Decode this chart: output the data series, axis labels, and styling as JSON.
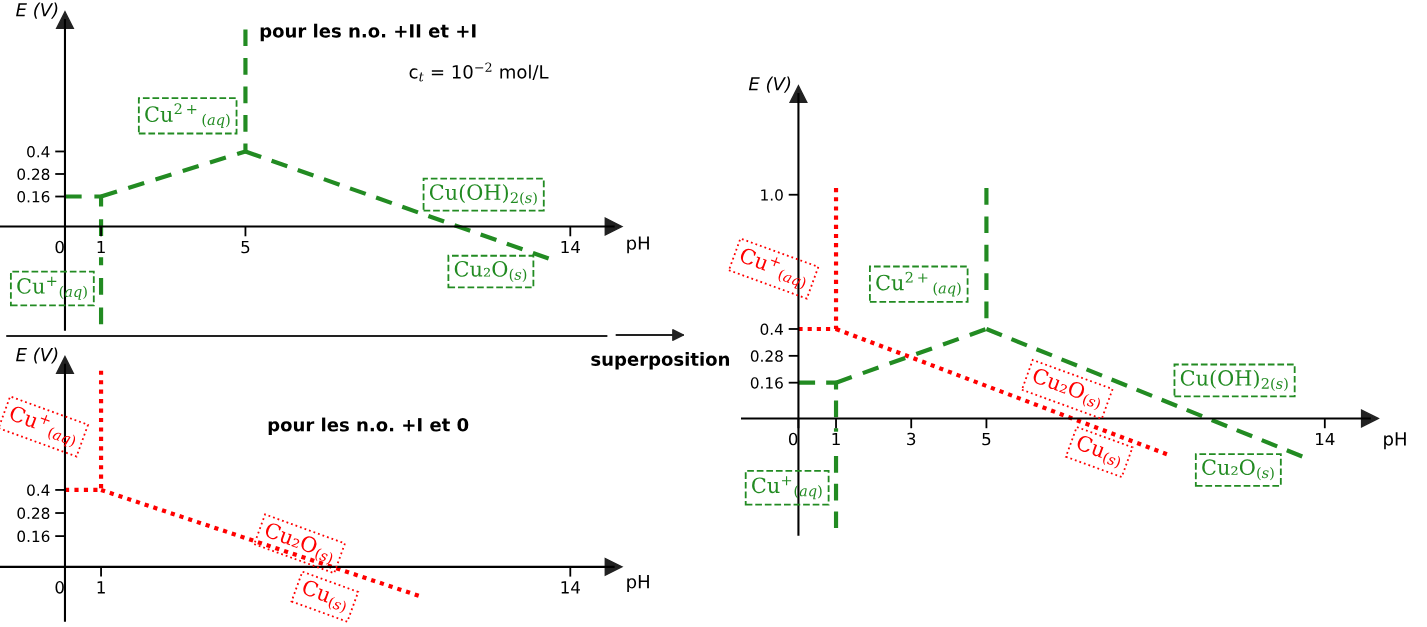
{
  "chart_data": [
    {
      "type": "line",
      "title": "pour les n.o. +II et +I",
      "xlabel": "pH",
      "ylabel": "E (V)",
      "line_style": "dashed",
      "series": [
        {
          "color": "#228b22",
          "x": [
            0,
            1,
            1
          ],
          "values": [
            0.16,
            0.16,
            -0.52
          ]
        },
        {
          "color": "#228b22",
          "x": [
            1,
            5,
            5
          ],
          "values": [
            0.16,
            0.4,
            1.05
          ]
        },
        {
          "color": "#228b22",
          "x": [
            5,
            13.4
          ],
          "values": [
            0.4,
            -0.17
          ]
        }
      ],
      "annotations": [
        "c$_{t}$ = 10$^{−2}$ mol/L",
        "Cu$^{2+}$$_{(aq)}$",
        "Cu(OH)$_{2(s)}$",
        "Cu₂O$_{(s)}$",
        "Cu$^{+}$$_{(aq)}$"
      ],
      "xlim": [
        -1.8,
        15.2
      ],
      "ylim": [
        -0.55,
        1.1
      ],
      "xticks": [
        0,
        1,
        5,
        14
      ],
      "yticks": [
        0.16,
        0.28,
        0.4
      ],
      "grid": false,
      "legend": false
    },
    {
      "type": "line",
      "title": "pour les n.o. +I et 0",
      "xlabel": "pH",
      "ylabel": "E (V)",
      "line_style": "dotted",
      "series": [
        {
          "color": "#ff0000",
          "x": [
            0,
            1,
            1
          ],
          "values": [
            0.4,
            0.4,
            1.02
          ]
        },
        {
          "color": "#ff0000",
          "x": [
            1,
            9.8
          ],
          "values": [
            0.4,
            -0.15
          ]
        }
      ],
      "annotations": [
        "Cu$^{+}$$_{(aq)}$",
        "Cu₂O$_{(s)}$",
        "Cu$_{(s)}$"
      ],
      "xlim": [
        -1.8,
        15.2
      ],
      "ylim": [
        -0.28,
        1.05
      ],
      "xticks": [
        0,
        1,
        14
      ],
      "yticks": [
        0.16,
        0.28,
        0.4
      ],
      "grid": false,
      "legend": false
    },
    {
      "type": "line",
      "xlabel": "pH",
      "ylabel": "E (V)",
      "series": [
        {
          "color": "#ff0000",
          "line_style": "dotted",
          "x": [
            0,
            1,
            1
          ],
          "values": [
            0.4,
            0.4,
            1.03
          ]
        },
        {
          "color": "#ff0000",
          "line_style": "dotted",
          "x": [
            1,
            9.8
          ],
          "values": [
            0.4,
            -0.16
          ]
        },
        {
          "color": "#228b22",
          "line_style": "dashed",
          "x": [
            0,
            1,
            1
          ],
          "values": [
            0.16,
            0.16,
            -0.49
          ]
        },
        {
          "color": "#228b22",
          "line_style": "dashed",
          "x": [
            1,
            5,
            5
          ],
          "values": [
            0.16,
            0.4,
            1.03
          ]
        },
        {
          "color": "#228b22",
          "line_style": "dashed",
          "x": [
            5,
            13.4
          ],
          "values": [
            0.4,
            -0.17
          ]
        }
      ],
      "annotations": [
        "superposition",
        "Cu$^{+}$$_{(aq)}$",
        "Cu$^{2+}$$_{(aq)}$",
        "Cu₂O$_{(s)}$",
        "Cu$_{(s)}$",
        "Cu(OH)$_{2(s)}$",
        "Cu₂O$_{(s)}$",
        "Cu$^{+}$$_{(aq)}$"
      ],
      "xlim": [
        -1.5,
        15.2
      ],
      "ylim": [
        -0.52,
        1.45
      ],
      "xticks": [
        0,
        1,
        3,
        5,
        14
      ],
      "yticks": [
        0.16,
        0.28,
        0.4,
        {
          "value": 1.0,
          "label": "1.0"
        }
      ],
      "grid": false,
      "legend": false
    }
  ]
}
